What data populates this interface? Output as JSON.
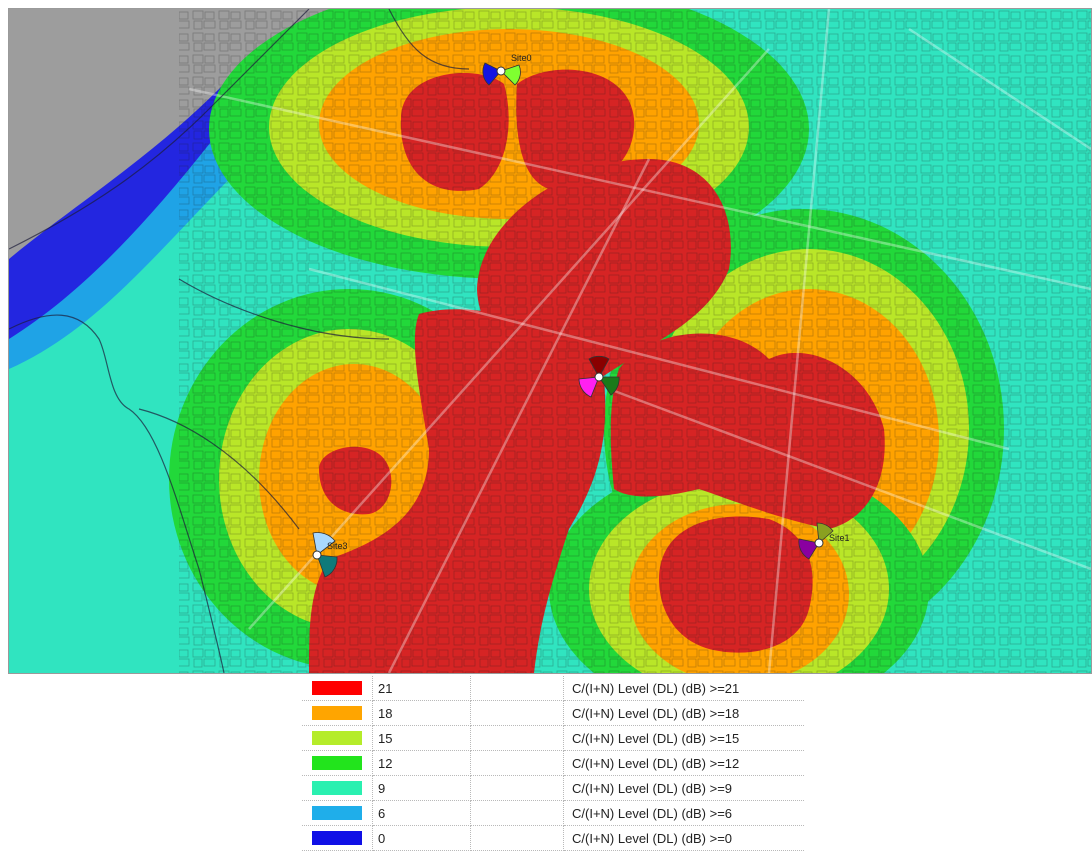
{
  "sites": [
    {
      "label": "Site0"
    },
    {
      "label": "Site1"
    },
    {
      "label": "Site2"
    },
    {
      "label": "Site3"
    }
  ],
  "legend": {
    "rows": [
      {
        "value": "21",
        "description": "C/(I+N) Level (DL) (dB) >=21",
        "color": "#ff0000"
      },
      {
        "value": "18",
        "description": "C/(I+N) Level (DL) (dB) >=18",
        "color": "#ffa500"
      },
      {
        "value": "15",
        "description": "C/(I+N) Level (DL) (dB) >=15",
        "color": "#b5ec2a"
      },
      {
        "value": "12",
        "description": "C/(I+N) Level (DL) (dB) >=12",
        "color": "#22e41c"
      },
      {
        "value": "9",
        "description": "C/(I+N) Level (DL) (dB) >=9",
        "color": "#2af0b0"
      },
      {
        "value": "6",
        "description": "C/(I+N) Level (DL) (dB) >=6",
        "color": "#1faeea"
      },
      {
        "value": "0",
        "description": "C/(I+N) Level (DL) (dB) >=0",
        "color": "#1010e6"
      }
    ]
  }
}
